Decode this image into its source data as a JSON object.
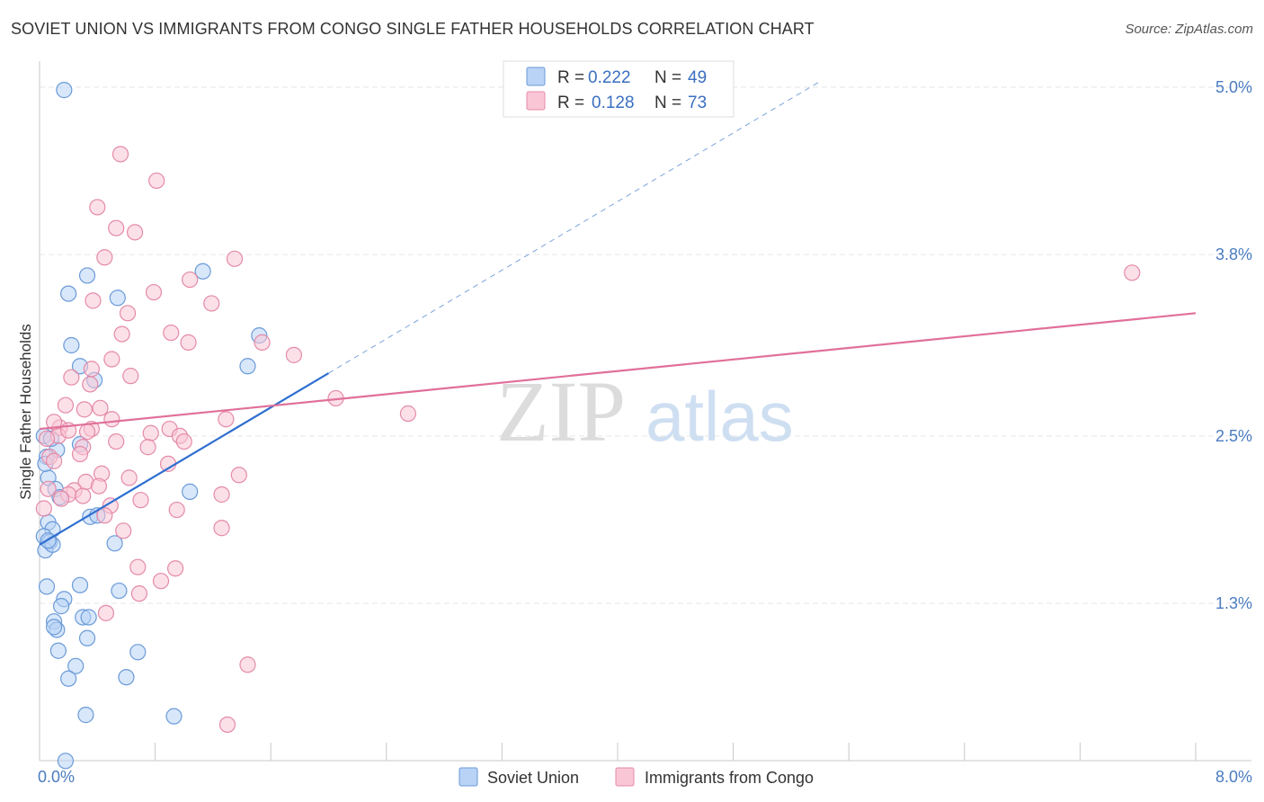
{
  "title": "SOVIET UNION VS IMMIGRANTS FROM CONGO SINGLE FATHER HOUSEHOLDS CORRELATION CHART",
  "source": "Source: ZipAtlas.com",
  "watermark": {
    "zip": "ZIP",
    "atlas": "atlas"
  },
  "legend": {
    "r_label": "R =",
    "n_label": "N =",
    "series": [
      {
        "name": "Soviet Union",
        "r": "0.222",
        "n": "49",
        "fill": "#b8d3f5",
        "stroke": "#6a9ad8"
      },
      {
        "name": "Immigrants from Congo",
        "r": "0.128",
        "n": "73",
        "fill": "#f9c6d6",
        "stroke": "#e48aa8"
      }
    ]
  },
  "chart_data": {
    "type": "scatter",
    "ylabel": "Single Father Households",
    "xlabel": "",
    "xlim": [
      0,
      8
    ],
    "ylim": [
      0,
      5.2
    ],
    "x_tick_labels": [
      {
        "value": 0,
        "label": "0.0%"
      },
      {
        "value": 8,
        "label": "8.0%"
      }
    ],
    "y_ticks": [
      {
        "value": 1.3,
        "label": "1.3%"
      },
      {
        "value": 2.5,
        "label": "2.5%"
      },
      {
        "value": 3.8,
        "label": "3.8%"
      },
      {
        "value": 5.0,
        "label": "5.0%"
      }
    ],
    "series": [
      {
        "name": "Soviet Union",
        "color": "#6a9ad8",
        "trend": {
          "x0": 0,
          "y0": 1.72,
          "x1": 2.0,
          "y1": 2.95,
          "dash_to_x": 5.4,
          "line_color": "#2f6fd0"
        },
        "points": [
          [
            0.17,
            4.98
          ],
          [
            0.33,
            3.65
          ],
          [
            0.2,
            3.52
          ],
          [
            0.54,
            3.49
          ],
          [
            1.13,
            3.68
          ],
          [
            1.52,
            3.22
          ],
          [
            0.22,
            3.15
          ],
          [
            0.28,
            3.0
          ],
          [
            0.38,
            2.9
          ],
          [
            1.44,
            3.0
          ],
          [
            0.12,
            2.4
          ],
          [
            0.05,
            2.35
          ],
          [
            0.28,
            2.44
          ],
          [
            0.06,
            2.2
          ],
          [
            0.04,
            2.3
          ],
          [
            0.11,
            2.12
          ],
          [
            0.06,
            1.88
          ],
          [
            0.09,
            1.83
          ],
          [
            0.03,
            1.78
          ],
          [
            0.07,
            1.74
          ],
          [
            0.04,
            1.68
          ],
          [
            0.09,
            1.72
          ],
          [
            0.35,
            1.92
          ],
          [
            0.4,
            1.93
          ],
          [
            0.52,
            1.73
          ],
          [
            1.04,
            2.1
          ],
          [
            0.05,
            1.42
          ],
          [
            0.28,
            1.43
          ],
          [
            0.55,
            1.39
          ],
          [
            0.17,
            1.33
          ],
          [
            0.15,
            1.28
          ],
          [
            0.3,
            1.2
          ],
          [
            0.34,
            1.2
          ],
          [
            0.1,
            1.17
          ],
          [
            0.12,
            1.11
          ],
          [
            0.33,
            1.05
          ],
          [
            0.13,
            0.96
          ],
          [
            0.68,
            0.95
          ],
          [
            0.25,
            0.85
          ],
          [
            0.2,
            0.76
          ],
          [
            0.6,
            0.77
          ],
          [
            0.32,
            0.5
          ],
          [
            0.93,
            0.49
          ],
          [
            0.18,
            0.17
          ],
          [
            0.1,
            1.13
          ],
          [
            0.03,
            2.5
          ],
          [
            0.08,
            2.48
          ],
          [
            0.14,
            2.06
          ],
          [
            0.06,
            1.75
          ]
        ]
      },
      {
        "name": "Immigrants from Congo",
        "color": "#e48aa8",
        "trend": {
          "x0": 0,
          "y0": 2.55,
          "x1": 8.0,
          "y1": 3.38,
          "line_color": "#e0709a"
        },
        "points": [
          [
            0.56,
            4.52
          ],
          [
            0.81,
            4.33
          ],
          [
            0.4,
            4.14
          ],
          [
            0.53,
            3.99
          ],
          [
            0.66,
            3.96
          ],
          [
            0.45,
            3.78
          ],
          [
            1.35,
            3.77
          ],
          [
            1.04,
            3.62
          ],
          [
            0.79,
            3.53
          ],
          [
            0.37,
            3.47
          ],
          [
            0.61,
            3.38
          ],
          [
            1.19,
            3.45
          ],
          [
            0.57,
            3.23
          ],
          [
            0.91,
            3.24
          ],
          [
            1.03,
            3.17
          ],
          [
            1.54,
            3.17
          ],
          [
            1.76,
            3.08
          ],
          [
            0.5,
            3.05
          ],
          [
            0.36,
            2.98
          ],
          [
            0.63,
            2.93
          ],
          [
            0.22,
            2.92
          ],
          [
            0.35,
            2.87
          ],
          [
            0.18,
            2.72
          ],
          [
            0.42,
            2.7
          ],
          [
            0.31,
            2.69
          ],
          [
            0.5,
            2.62
          ],
          [
            2.05,
            2.77
          ],
          [
            2.55,
            2.66
          ],
          [
            1.29,
            2.62
          ],
          [
            0.14,
            2.56
          ],
          [
            0.9,
            2.55
          ],
          [
            0.97,
            2.5
          ],
          [
            0.36,
            2.55
          ],
          [
            0.77,
            2.52
          ],
          [
            0.13,
            2.5
          ],
          [
            0.05,
            2.48
          ],
          [
            0.53,
            2.46
          ],
          [
            0.75,
            2.42
          ],
          [
            0.3,
            2.42
          ],
          [
            0.28,
            2.37
          ],
          [
            0.07,
            2.35
          ],
          [
            0.1,
            2.32
          ],
          [
            0.89,
            2.3
          ],
          [
            1.38,
            2.22
          ],
          [
            0.43,
            2.23
          ],
          [
            0.62,
            2.2
          ],
          [
            0.32,
            2.17
          ],
          [
            0.41,
            2.14
          ],
          [
            0.24,
            2.11
          ],
          [
            0.2,
            2.08
          ],
          [
            0.7,
            2.04
          ],
          [
            0.3,
            2.07
          ],
          [
            1.26,
            2.08
          ],
          [
            0.15,
            2.05
          ],
          [
            0.49,
            2.0
          ],
          [
            0.95,
            1.97
          ],
          [
            0.03,
            1.98
          ],
          [
            0.45,
            1.93
          ],
          [
            0.58,
            1.82
          ],
          [
            1.26,
            1.84
          ],
          [
            0.68,
            1.56
          ],
          [
            0.94,
            1.55
          ],
          [
            0.84,
            1.46
          ],
          [
            0.69,
            1.37
          ],
          [
            0.46,
            1.23
          ],
          [
            1.44,
            0.86
          ],
          [
            1.3,
            0.43
          ],
          [
            7.56,
            3.67
          ],
          [
            0.1,
            2.6
          ],
          [
            0.2,
            2.54
          ],
          [
            1.0,
            2.46
          ],
          [
            0.33,
            2.53
          ],
          [
            0.06,
            2.12
          ]
        ]
      }
    ]
  }
}
